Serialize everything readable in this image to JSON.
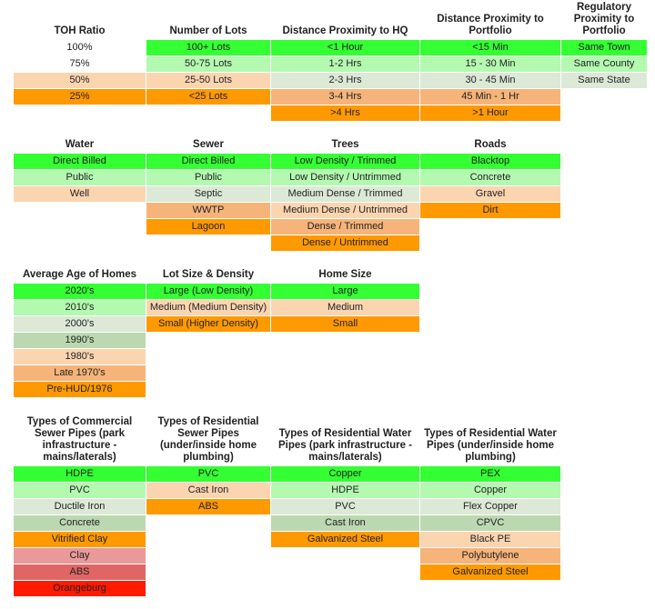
{
  "colors": {
    "c0": "#33ff33",
    "c1": "#b3f9b0",
    "c2": "#dbe9d6",
    "c3": "#bcd8b1",
    "c4": "#fbd5b0",
    "c5": "#f6b47a",
    "c6": "#ff9900",
    "c7": "#ea9999",
    "c8": "#e06666",
    "c9": "#ff1a00",
    "white": "#ffffff"
  },
  "tables": [
    {
      "title": "TOH Ratio",
      "rows": [
        {
          "text": "100%",
          "c": "white"
        },
        {
          "text": "75%",
          "c": "white"
        },
        {
          "text": "50%",
          "c": "c4"
        },
        {
          "text": "25%",
          "c": "c6"
        }
      ]
    },
    {
      "title": "Number of Lots",
      "rows": [
        {
          "text": "100+ Lots",
          "c": "c0"
        },
        {
          "text": "50-75 Lots",
          "c": "c1"
        },
        {
          "text": "25-50 Lots",
          "c": "c4"
        },
        {
          "text": "<25 Lots",
          "c": "c6"
        }
      ]
    },
    {
      "title": "Distance Proximity to HQ",
      "rows": [
        {
          "text": "<1 Hour",
          "c": "c0"
        },
        {
          "text": "1-2 Hrs",
          "c": "c1"
        },
        {
          "text": "2-3 Hrs",
          "c": "c2"
        },
        {
          "text": "3-4 Hrs",
          "c": "c5"
        },
        {
          "text": ">4 Hrs",
          "c": "c6"
        }
      ]
    },
    {
      "title": "Distance Proximity to Portfolio",
      "rows": [
        {
          "text": "<15 Min",
          "c": "c0"
        },
        {
          "text": "15 - 30 Min",
          "c": "c1"
        },
        {
          "text": "30 - 45 Min",
          "c": "c2"
        },
        {
          "text": "45 Min - 1 Hr",
          "c": "c5"
        },
        {
          "text": ">1 Hour",
          "c": "c6"
        }
      ]
    },
    {
      "title": "Regulatory Proximity to Portfolio",
      "rows": [
        {
          "text": "Same Town",
          "c": "c0"
        },
        {
          "text": "Same County",
          "c": "c1"
        },
        {
          "text": "Same State",
          "c": "c2"
        }
      ]
    },
    {
      "title": "Water",
      "rows": [
        {
          "text": "Direct Billed",
          "c": "c0"
        },
        {
          "text": "Public",
          "c": "c1"
        },
        {
          "text": "Well",
          "c": "c4"
        }
      ]
    },
    {
      "title": "Sewer",
      "rows": [
        {
          "text": "Direct Billed",
          "c": "c0"
        },
        {
          "text": "Public",
          "c": "c1"
        },
        {
          "text": "Septic",
          "c": "c2"
        },
        {
          "text": "WWTP",
          "c": "c5"
        },
        {
          "text": "Lagoon",
          "c": "c6"
        }
      ]
    },
    {
      "title": "Trees",
      "rows": [
        {
          "text": "Low Density / Trimmed",
          "c": "c0"
        },
        {
          "text": "Low Density / Untrimmed",
          "c": "c1"
        },
        {
          "text": "Medium Dense / Trimmed",
          "c": "c2"
        },
        {
          "text": "Medium Dense / Untrimmed",
          "c": "c4"
        },
        {
          "text": "Dense / Trimmed",
          "c": "c5"
        },
        {
          "text": "Dense / Untrimmed",
          "c": "c6"
        }
      ]
    },
    {
      "title": "Roads",
      "rows": [
        {
          "text": "Blacktop",
          "c": "c0"
        },
        {
          "text": "Concrete",
          "c": "c1"
        },
        {
          "text": "Gravel",
          "c": "c4"
        },
        {
          "text": "Dirt",
          "c": "c6"
        }
      ]
    },
    {
      "title": "Average Age of Homes",
      "rows": [
        {
          "text": "2020's",
          "c": "c0"
        },
        {
          "text": "2010's",
          "c": "c1"
        },
        {
          "text": "2000's",
          "c": "c2"
        },
        {
          "text": "1990's",
          "c": "c3"
        },
        {
          "text": "1980's",
          "c": "c4"
        },
        {
          "text": "Late 1970's",
          "c": "c5"
        },
        {
          "text": "Pre-HUD/1976",
          "c": "c6"
        }
      ]
    },
    {
      "title": "Lot Size & Density",
      "rows": [
        {
          "text": "Large (Low Density)",
          "c": "c0"
        },
        {
          "text": "Medium (Medium Density)",
          "c": "c4"
        },
        {
          "text": "Small (Higher Density)",
          "c": "c6"
        }
      ]
    },
    {
      "title": "Home Size",
      "rows": [
        {
          "text": "Large",
          "c": "c0"
        },
        {
          "text": "Medium",
          "c": "c4"
        },
        {
          "text": "Small",
          "c": "c6"
        }
      ]
    },
    {
      "title": "Types of Commercial Sewer Pipes (park infrastructure - mains/laterals)",
      "rows": [
        {
          "text": "HDPE",
          "c": "c0"
        },
        {
          "text": "PVC",
          "c": "c1"
        },
        {
          "text": "Ductile Iron",
          "c": "c2"
        },
        {
          "text": "Concrete",
          "c": "c3"
        },
        {
          "text": "Vitrified Clay",
          "c": "c6"
        },
        {
          "text": "Clay",
          "c": "c7"
        },
        {
          "text": "ABS",
          "c": "c8"
        },
        {
          "text": "Orangeburg",
          "c": "c9"
        }
      ]
    },
    {
      "title": "Types of Residential Sewer Pipes (under/inside home plumbing)",
      "rows": [
        {
          "text": "PVC",
          "c": "c0"
        },
        {
          "text": "Cast Iron",
          "c": "c4"
        },
        {
          "text": "ABS",
          "c": "c6"
        }
      ]
    },
    {
      "title": "Types of Residential Water Pipes (park infrastructure - mains/laterals)",
      "rows": [
        {
          "text": "Copper",
          "c": "c0"
        },
        {
          "text": "HDPE",
          "c": "c1"
        },
        {
          "text": "PVC",
          "c": "c2"
        },
        {
          "text": "Cast Iron",
          "c": "c3"
        },
        {
          "text": "Galvanized Steel",
          "c": "c6"
        }
      ]
    },
    {
      "title": "Types of Residential Water Pipes (under/inside home plumbing)",
      "rows": [
        {
          "text": "PEX",
          "c": "c0"
        },
        {
          "text": "Copper",
          "c": "c1"
        },
        {
          "text": "Flex Copper",
          "c": "c2"
        },
        {
          "text": "CPVC",
          "c": "c3"
        },
        {
          "text": "Black PE",
          "c": "c4"
        },
        {
          "text": "Polybutylene",
          "c": "c5"
        },
        {
          "text": "Galvanized Steel",
          "c": "c6"
        }
      ]
    }
  ]
}
